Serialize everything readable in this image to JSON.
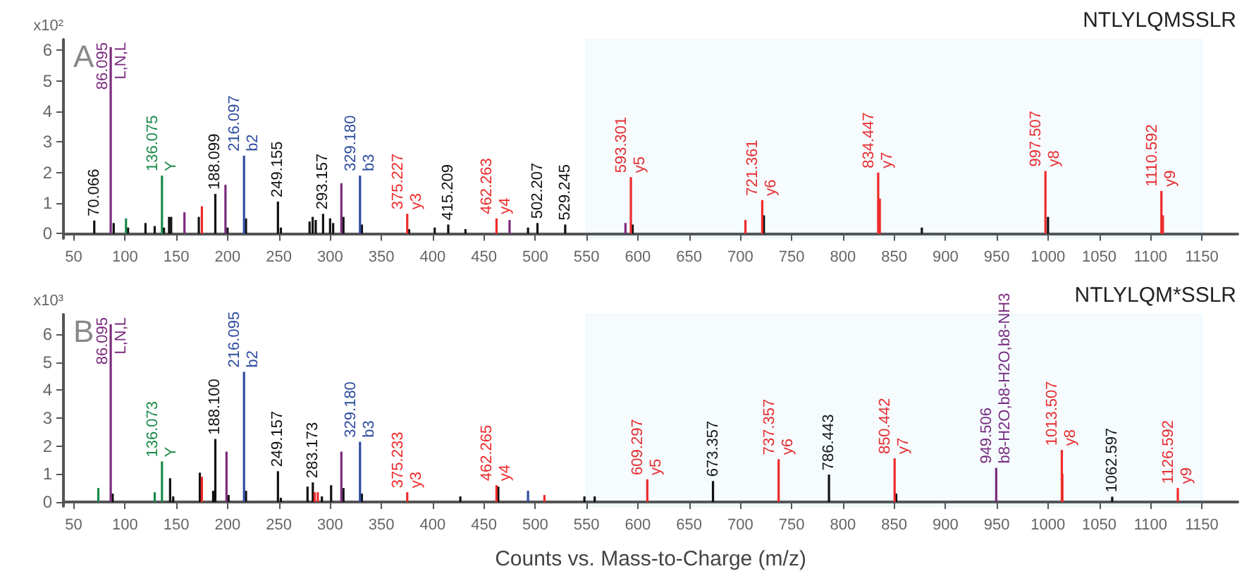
{
  "chart_data": [
    {
      "type": "bar",
      "title": "A",
      "subtitle": "NTLYLQMSSLR",
      "ylabel": "x10²",
      "xlim": [
        40,
        1185
      ],
      "xticks": [
        50,
        100,
        150,
        200,
        250,
        300,
        350,
        400,
        450,
        500,
        550,
        600,
        650,
        700,
        750,
        800,
        850,
        900,
        950,
        1000,
        1050,
        1100,
        1150
      ],
      "ylim": [
        -0.15,
        6.35
      ],
      "yticks": [
        0,
        1,
        2,
        3,
        4,
        5,
        6
      ],
      "bands": [
        {
          "axis": "x",
          "from": 550,
          "to": 1150,
          "color": "#1ea0dc"
        }
      ],
      "series": [
        {
          "color": "#111111",
          "x": [
            70.066,
            87,
            89,
            103,
            120,
            129,
            138,
            143,
            145,
            172,
            188.099,
            200,
            218,
            249.155,
            252,
            280,
            283,
            286,
            293.157,
            300,
            303,
            313,
            331,
            377,
            402,
            415.209,
            432,
            493,
            502.207,
            529.245,
            595,
            723,
            877,
            998,
            1000
          ],
          "values": [
            0.43,
            null,
            0.35,
            0.2,
            0.35,
            0.25,
            0.2,
            0.55,
            0.55,
            0.55,
            1.3,
            0.2,
            0.5,
            1.05,
            0.2,
            0.4,
            0.55,
            0.45,
            0.65,
            0.5,
            0.35,
            0.55,
            0.3,
            0.15,
            0.2,
            0.3,
            0.15,
            0.2,
            0.35,
            0.3,
            0.3,
            0.6,
            0.2,
            null,
            0.55
          ]
        },
        {
          "color": "#7b2a7e",
          "x": [
            86.095,
            158,
            198,
            311,
            475,
            588
          ],
          "values": [
            6.1,
            0.7,
            1.6,
            1.65,
            0.45,
            0.35
          ]
        },
        {
          "color": "#1a8a4a",
          "x": [
            101,
            136.075
          ],
          "values": [
            0.5,
            1.9
          ]
        },
        {
          "color": "#2f4da0",
          "x": [
            216.097,
            329.18
          ],
          "values": [
            2.55,
            1.9
          ]
        },
        {
          "color": "#ee2a2a",
          "x": [
            175,
            375.227,
            462.263,
            593.301,
            705,
            721.361,
            834.447,
            836,
            997.507,
            1110.592,
            1112
          ],
          "values": [
            0.9,
            0.65,
            0.5,
            1.85,
            0.45,
            1.1,
            2.0,
            1.15,
            2.05,
            1.4,
            0.6
          ]
        }
      ],
      "annotations": [
        {
          "text": "70.066",
          "x": 70.066,
          "y": 0.43
        },
        {
          "text": "86.095\nL,N,L",
          "x": 86.095,
          "y": 6.1
        },
        {
          "text": "136.075\nY",
          "x": 136.075,
          "y": 1.9
        },
        {
          "text": "188.099",
          "x": 188.099,
          "y": 1.3
        },
        {
          "text": "216.097\nb2",
          "x": 216.097,
          "y": 2.55
        },
        {
          "text": "249.155",
          "x": 249.155,
          "y": 1.05
        },
        {
          "text": "293.157",
          "x": 293.157,
          "y": 0.65
        },
        {
          "text": "329.180\nb3",
          "x": 329.18,
          "y": 1.9
        },
        {
          "text": "375.227\ny3",
          "x": 375.227,
          "y": 0.65
        },
        {
          "text": "415.209",
          "x": 415.209,
          "y": 0.3
        },
        {
          "text": "462.263\ny4",
          "x": 462.263,
          "y": 0.5
        },
        {
          "text": "502.207",
          "x": 502.207,
          "y": 0.35
        },
        {
          "text": "529.245",
          "x": 529.245,
          "y": 0.3
        },
        {
          "text": "593.301\ny5",
          "x": 593.301,
          "y": 1.85
        },
        {
          "text": "721.361\ny6",
          "x": 721.361,
          "y": 1.1
        },
        {
          "text": "834.447\ny7",
          "x": 834.447,
          "y": 2.0
        },
        {
          "text": "997.507\ny8",
          "x": 997.507,
          "y": 2.05
        },
        {
          "text": "1110.592\ny9",
          "x": 1110.592,
          "y": 1.4
        }
      ]
    },
    {
      "type": "bar",
      "title": "B",
      "subtitle": "NTLYLQM*SSLR",
      "ylabel": "x10³",
      "xlabel": "Counts vs. Mass-to-Charge (m/z)",
      "xlim": [
        40,
        1185
      ],
      "xticks": [
        50,
        100,
        150,
        200,
        250,
        300,
        350,
        400,
        450,
        500,
        550,
        600,
        650,
        700,
        750,
        800,
        850,
        900,
        950,
        1000,
        1050,
        1100,
        1150
      ],
      "ylim": [
        -0.15,
        6.7
      ],
      "yticks": [
        0,
        1,
        2,
        3,
        4,
        5,
        6
      ],
      "bands": [
        {
          "axis": "x",
          "from": 550,
          "to": 1150,
          "color": "#1ea0dc"
        }
      ],
      "series": [
        {
          "color": "#111111",
          "x": [
            88,
            144,
            147,
            173,
            176,
            186,
            188.1,
            201,
            218,
            249.157,
            252,
            278,
            283.173,
            292,
            301,
            313,
            331,
            427,
            464,
            548,
            558,
            673.357,
            786.443,
            852,
            1062.597
          ],
          "values": [
            0.3,
            0.85,
            0.2,
            1.05,
            null,
            0.4,
            2.25,
            0.25,
            0.4,
            1.1,
            0.15,
            0.55,
            0.7,
            0.2,
            0.6,
            0.5,
            0.3,
            0.2,
            0.55,
            0.2,
            0.2,
            0.75,
            0.98,
            0.3,
            0.19
          ]
        },
        {
          "color": "#7b2a7e",
          "x": [
            86.095,
            199,
            311,
            949.506
          ],
          "values": [
            6.35,
            1.8,
            1.8,
            1.22
          ]
        },
        {
          "color": "#1a8a4a",
          "x": [
            74,
            129,
            136.073
          ],
          "values": [
            0.5,
            0.35,
            1.45
          ]
        },
        {
          "color": "#2f4da0",
          "x": [
            216.095,
            329.18,
            493
          ],
          "values": [
            4.65,
            2.15,
            0.4
          ]
        },
        {
          "color": "#ee2a2a",
          "x": [
            175,
            285,
            288,
            375.233,
            462.265,
            509,
            609.297,
            737.357,
            850.442,
            1013.507,
            1014,
            1126.592
          ],
          "values": [
            0.9,
            0.35,
            0.35,
            0.35,
            0.6,
            0.25,
            0.81,
            1.53,
            1.56,
            1.86,
            1.0,
            0.5
          ]
        }
      ],
      "annotations": [
        {
          "text": "86.095\nL,N,L",
          "x": 86.095,
          "y": 6.35
        },
        {
          "text": "136.073\nY",
          "x": 136.073,
          "y": 1.45
        },
        {
          "text": "188.100",
          "x": 188.1,
          "y": 2.25
        },
        {
          "text": "216.095\nb2",
          "x": 216.095,
          "y": 4.65
        },
        {
          "text": "249.157",
          "x": 249.157,
          "y": 1.1
        },
        {
          "text": "283.173",
          "x": 283.173,
          "y": 0.7
        },
        {
          "text": "329.180\nb3",
          "x": 329.18,
          "y": 2.15
        },
        {
          "text": "375.233\ny3",
          "x": 375.233,
          "y": 0.35
        },
        {
          "text": "462.265\ny4",
          "x": 462.265,
          "y": 0.6
        },
        {
          "text": "609.297\ny5",
          "x": 609.297,
          "y": 0.81
        },
        {
          "text": "673.357",
          "x": 673.357,
          "y": 0.75
        },
        {
          "text": "737.357\ny6",
          "x": 737.357,
          "y": 1.53
        },
        {
          "text": "786.443",
          "x": 786.443,
          "y": 0.98
        },
        {
          "text": "850.442\ny7",
          "x": 850.442,
          "y": 1.56
        },
        {
          "text": "949.506\nb8-H2O,b8-H2O,b8-NH3",
          "x": 949.506,
          "y": 1.22
        },
        {
          "text": "1013.507\ny8",
          "x": 1013.507,
          "y": 1.86
        },
        {
          "text": "1062.597",
          "x": 1062.597,
          "y": 0.19
        },
        {
          "text": "1126.592\ny9",
          "x": 1126.592,
          "y": 0.5
        }
      ]
    }
  ]
}
